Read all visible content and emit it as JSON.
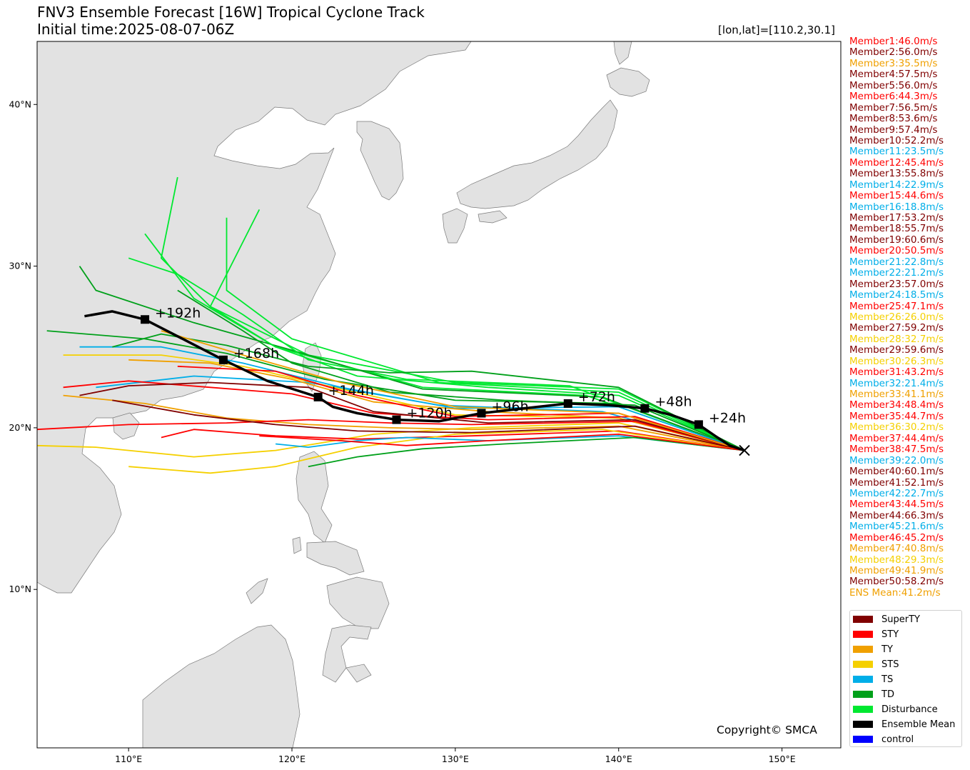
{
  "title_line1": "FNV3 Ensemble Forecast [16W] Tropical Cyclone Track",
  "title_line2": "Initial time:2025-08-07-06Z",
  "lonlat_readout": "[lon,lat]=[110.2,30.1]",
  "copyright": "Copyright© SMCA",
  "map_extent": {
    "lon": [
      104.4,
      153.6
    ],
    "lat": [
      0.2,
      43.9
    ]
  },
  "lon_ticks": [
    {
      "value": 110,
      "label": "110°E"
    },
    {
      "value": 120,
      "label": "120°E"
    },
    {
      "value": 130,
      "label": "130°E"
    },
    {
      "value": 140,
      "label": "140°E"
    },
    {
      "value": 150,
      "label": "150°E"
    }
  ],
  "lat_ticks": [
    {
      "value": 10,
      "label": "10°N"
    },
    {
      "value": 20,
      "label": "20°N"
    },
    {
      "value": 30,
      "label": "30°N"
    },
    {
      "value": 40,
      "label": "40°N"
    }
  ],
  "intensity_colors": {
    "SuperTY": "#800000",
    "STY": "#ff0000",
    "TY": "#f0a000",
    "STS": "#f5d000",
    "TS": "#00aee8",
    "TD": "#00a01a",
    "Disturbance": "#00e830",
    "EnsembleMean": "#000000",
    "control": "#0000ff"
  },
  "members": [
    {
      "label": "Member1:46.0m/s",
      "cat": "STY"
    },
    {
      "label": "Member2:56.0m/s",
      "cat": "SuperTY"
    },
    {
      "label": "Member3:35.5m/s",
      "cat": "TY"
    },
    {
      "label": "Member4:57.5m/s",
      "cat": "SuperTY"
    },
    {
      "label": "Member5:56.0m/s",
      "cat": "SuperTY"
    },
    {
      "label": "Member6:44.3m/s",
      "cat": "STY"
    },
    {
      "label": "Member7:56.5m/s",
      "cat": "SuperTY"
    },
    {
      "label": "Member8:53.6m/s",
      "cat": "SuperTY"
    },
    {
      "label": "Member9:57.4m/s",
      "cat": "SuperTY"
    },
    {
      "label": "Member10:52.2m/s",
      "cat": "SuperTY"
    },
    {
      "label": "Member11:23.5m/s",
      "cat": "TS"
    },
    {
      "label": "Member12:45.4m/s",
      "cat": "STY"
    },
    {
      "label": "Member13:55.8m/s",
      "cat": "SuperTY"
    },
    {
      "label": "Member14:22.9m/s",
      "cat": "TS"
    },
    {
      "label": "Member15:44.6m/s",
      "cat": "STY"
    },
    {
      "label": "Member16:18.8m/s",
      "cat": "TS"
    },
    {
      "label": "Member17:53.2m/s",
      "cat": "SuperTY"
    },
    {
      "label": "Member18:55.7m/s",
      "cat": "SuperTY"
    },
    {
      "label": "Member19:60.6m/s",
      "cat": "SuperTY"
    },
    {
      "label": "Member20:50.5m/s",
      "cat": "STY"
    },
    {
      "label": "Member21:22.8m/s",
      "cat": "TS"
    },
    {
      "label": "Member22:21.2m/s",
      "cat": "TS"
    },
    {
      "label": "Member23:57.0m/s",
      "cat": "SuperTY"
    },
    {
      "label": "Member24:18.5m/s",
      "cat": "TS"
    },
    {
      "label": "Member25:47.1m/s",
      "cat": "STY"
    },
    {
      "label": "Member26:26.0m/s",
      "cat": "STS"
    },
    {
      "label": "Member27:59.2m/s",
      "cat": "SuperTY"
    },
    {
      "label": "Member28:32.7m/s",
      "cat": "STS"
    },
    {
      "label": "Member29:59.6m/s",
      "cat": "SuperTY"
    },
    {
      "label": "Member30:26.3m/s",
      "cat": "STS"
    },
    {
      "label": "Member31:43.2m/s",
      "cat": "STY"
    },
    {
      "label": "Member32:21.4m/s",
      "cat": "TS"
    },
    {
      "label": "Member33:41.1m/s",
      "cat": "TY"
    },
    {
      "label": "Member34:48.4m/s",
      "cat": "STY"
    },
    {
      "label": "Member35:44.7m/s",
      "cat": "STY"
    },
    {
      "label": "Member36:30.2m/s",
      "cat": "STS"
    },
    {
      "label": "Member37:44.4m/s",
      "cat": "STY"
    },
    {
      "label": "Member38:47.5m/s",
      "cat": "STY"
    },
    {
      "label": "Member39:22.0m/s",
      "cat": "TS"
    },
    {
      "label": "Member40:60.1m/s",
      "cat": "SuperTY"
    },
    {
      "label": "Member41:52.1m/s",
      "cat": "SuperTY"
    },
    {
      "label": "Member42:22.7m/s",
      "cat": "TS"
    },
    {
      "label": "Member43:44.5m/s",
      "cat": "STY"
    },
    {
      "label": "Member44:66.3m/s",
      "cat": "SuperTY"
    },
    {
      "label": "Member45:21.6m/s",
      "cat": "TS"
    },
    {
      "label": "Member46:45.2m/s",
      "cat": "STY"
    },
    {
      "label": "Member47:40.8m/s",
      "cat": "TY"
    },
    {
      "label": "Member48:29.3m/s",
      "cat": "STS"
    },
    {
      "label": "Member49:41.9m/s",
      "cat": "TY"
    },
    {
      "label": "Member50:58.2m/s",
      "cat": "SuperTY"
    },
    {
      "label": "ENS Mean:41.2m/s",
      "cat": "TY"
    }
  ],
  "legend": [
    {
      "label": "SuperTY",
      "cat": "SuperTY"
    },
    {
      "label": "STY",
      "cat": "STY"
    },
    {
      "label": "TY",
      "cat": "TY"
    },
    {
      "label": "STS",
      "cat": "STS"
    },
    {
      "label": "TS",
      "cat": "TS"
    },
    {
      "label": "TD",
      "cat": "TD"
    },
    {
      "label": "Disturbance",
      "cat": "Disturbance"
    },
    {
      "label": "Ensemble Mean",
      "cat": "EnsembleMean"
    },
    {
      "label": "control",
      "cat": "control"
    }
  ],
  "initial_position": {
    "lon": 147.7,
    "lat": 18.6
  },
  "ensemble_mean_track": [
    [
      147.7,
      18.6
    ],
    [
      146.8,
      18.9
    ],
    [
      145.9,
      19.5
    ],
    [
      144.9,
      20.2
    ],
    [
      143.2,
      20.8
    ],
    [
      141.6,
      21.2
    ],
    [
      139.4,
      21.4
    ],
    [
      136.9,
      21.5
    ],
    [
      134.2,
      21.2
    ],
    [
      131.6,
      20.9
    ],
    [
      129.0,
      20.4
    ],
    [
      126.4,
      20.5
    ],
    [
      124.0,
      20.9
    ],
    [
      122.5,
      21.3
    ],
    [
      121.6,
      21.9
    ],
    [
      118.5,
      22.9
    ],
    [
      115.8,
      24.2
    ],
    [
      113.5,
      25.4
    ],
    [
      111.0,
      26.7
    ],
    [
      109.0,
      27.2
    ],
    [
      107.3,
      26.9
    ]
  ],
  "mean_markers": [
    {
      "lon": 144.9,
      "lat": 20.2,
      "label": "+24h"
    },
    {
      "lon": 141.6,
      "lat": 21.2,
      "label": "+48h"
    },
    {
      "lon": 136.9,
      "lat": 21.5,
      "label": "+72h"
    },
    {
      "lon": 131.6,
      "lat": 20.9,
      "label": "+96h"
    },
    {
      "lon": 126.4,
      "lat": 20.5,
      "label": "+120h"
    },
    {
      "lon": 121.6,
      "lat": 21.9,
      "label": "+144h"
    },
    {
      "lon": 115.8,
      "lat": 24.2,
      "label": "+168h"
    },
    {
      "lon": 111.0,
      "lat": 26.7,
      "label": "+192h"
    }
  ],
  "member_tracks": [
    {
      "cat": "Disturbance",
      "pts": [
        [
          147.7,
          18.6
        ],
        [
          140,
          22.4
        ],
        [
          130,
          22.8
        ],
        [
          121,
          24.5
        ],
        [
          115,
          27.5
        ],
        [
          112,
          30.5
        ],
        [
          113,
          35.5
        ]
      ]
    },
    {
      "cat": "Disturbance",
      "pts": [
        [
          147.7,
          18.6
        ],
        [
          138,
          22.0
        ],
        [
          128,
          22.5
        ],
        [
          119,
          25.0
        ],
        [
          114,
          28.0
        ],
        [
          111,
          32.0
        ]
      ]
    },
    {
      "cat": "Disturbance",
      "pts": [
        [
          147.7,
          18.6
        ],
        [
          140,
          22.2
        ],
        [
          129,
          22.8
        ],
        [
          120,
          25.5
        ],
        [
          116,
          28.5
        ],
        [
          116,
          33.0
        ]
      ]
    },
    {
      "cat": "TD",
      "pts": [
        [
          147.7,
          18.6
        ],
        [
          139,
          21.9
        ],
        [
          128,
          22.4
        ],
        [
          120,
          24.8
        ],
        [
          114,
          26.5
        ],
        [
          108,
          28.5
        ],
        [
          107,
          30.0
        ]
      ]
    },
    {
      "cat": "Disturbance",
      "pts": [
        [
          147.7,
          18.6
        ],
        [
          137,
          22.6
        ],
        [
          127,
          23.0
        ],
        [
          121,
          24.2
        ],
        [
          117,
          27.0
        ],
        [
          113,
          29.5
        ],
        [
          110,
          30.5
        ]
      ]
    },
    {
      "cat": "TD",
      "pts": [
        [
          147.7,
          18.6
        ],
        [
          140,
          21.5
        ],
        [
          130,
          21.7
        ],
        [
          122,
          23.0
        ],
        [
          116,
          24.6
        ],
        [
          111,
          25.5
        ],
        [
          105,
          26.0
        ]
      ]
    },
    {
      "cat": "Disturbance",
      "pts": [
        [
          147.7,
          18.6
        ],
        [
          140,
          22.0
        ],
        [
          132,
          22.5
        ],
        [
          124,
          23.2
        ],
        [
          119,
          25.0
        ],
        [
          115,
          27.5
        ],
        [
          118,
          33.5
        ]
      ]
    },
    {
      "cat": "TD",
      "pts": [
        [
          147.7,
          18.6
        ],
        [
          141,
          21.4
        ],
        [
          133,
          21.7
        ],
        [
          126,
          22.2
        ],
        [
          120,
          24.0
        ],
        [
          117,
          26.0
        ],
        [
          113,
          28.5
        ]
      ]
    },
    {
      "cat": "TS",
      "pts": [
        [
          147.7,
          18.6
        ],
        [
          140,
          21.3
        ],
        [
          130,
          21.2
        ],
        [
          123,
          22.5
        ],
        [
          117,
          24.0
        ],
        [
          112,
          25.0
        ],
        [
          107,
          25.0
        ]
      ]
    },
    {
      "cat": "TS",
      "pts": [
        [
          147.7,
          18.6
        ],
        [
          139,
          21.0
        ],
        [
          129,
          21.4
        ],
        [
          121,
          22.8
        ],
        [
          114,
          23.2
        ],
        [
          108,
          22.5
        ]
      ]
    },
    {
      "cat": "STS",
      "pts": [
        [
          147.7,
          18.6
        ],
        [
          140,
          20.6
        ],
        [
          130,
          20.8
        ],
        [
          123,
          22.4
        ],
        [
          117,
          23.8
        ],
        [
          112,
          24.5
        ],
        [
          106,
          24.5
        ]
      ]
    },
    {
      "cat": "STS",
      "pts": [
        [
          147.7,
          18.6
        ],
        [
          140,
          20.3
        ],
        [
          131,
          20.0
        ],
        [
          125,
          19.6
        ],
        [
          119,
          18.6
        ],
        [
          114,
          18.2
        ],
        [
          108,
          18.8
        ],
        [
          104.4,
          18.9
        ]
      ]
    },
    {
      "cat": "TY",
      "pts": [
        [
          147.7,
          18.6
        ],
        [
          140,
          20.1
        ],
        [
          131,
          19.9
        ],
        [
          126,
          20.0
        ],
        [
          121,
          20.2
        ],
        [
          116,
          20.6
        ],
        [
          111,
          21.5
        ],
        [
          106,
          22.0
        ]
      ]
    },
    {
      "cat": "TY",
      "pts": [
        [
          147.7,
          18.6
        ],
        [
          140,
          20.6
        ],
        [
          132,
          21.0
        ],
        [
          125,
          21.6
        ],
        [
          120,
          23.0
        ],
        [
          115,
          24.0
        ],
        [
          110,
          24.2
        ]
      ]
    },
    {
      "cat": "STY",
      "pts": [
        [
          147.7,
          18.6
        ],
        [
          141,
          20.4
        ],
        [
          131,
          20.2
        ],
        [
          126,
          20.3
        ],
        [
          121,
          20.5
        ],
        [
          116,
          20.3
        ],
        [
          110,
          20.2
        ],
        [
          104.4,
          19.9
        ]
      ]
    },
    {
      "cat": "STY",
      "pts": [
        [
          147.7,
          18.6
        ],
        [
          141,
          20.7
        ],
        [
          132,
          20.5
        ],
        [
          125,
          20.9
        ],
        [
          120,
          22.1
        ],
        [
          115,
          22.5
        ],
        [
          110,
          22.9
        ],
        [
          106,
          22.5
        ]
      ]
    },
    {
      "cat": "STY",
      "pts": [
        [
          147.7,
          18.6
        ],
        [
          140,
          20.9
        ],
        [
          130,
          20.7
        ],
        [
          124,
          22.0
        ],
        [
          119,
          23.5
        ],
        [
          113,
          23.8
        ]
      ]
    },
    {
      "cat": "SuperTY",
      "pts": [
        [
          147.7,
          18.6
        ],
        [
          141,
          20.5
        ],
        [
          132,
          20.3
        ],
        [
          125,
          21.0
        ],
        [
          121,
          22.5
        ],
        [
          115,
          22.8
        ],
        [
          110,
          22.6
        ],
        [
          107,
          22.0
        ]
      ]
    },
    {
      "cat": "SuperTY",
      "pts": [
        [
          147.7,
          18.6
        ],
        [
          141,
          20.1
        ],
        [
          131,
          19.7
        ],
        [
          124,
          19.8
        ],
        [
          119,
          20.2
        ],
        [
          114,
          20.8
        ],
        [
          109,
          21.7
        ]
      ]
    },
    {
      "cat": "STY",
      "pts": [
        [
          147.7,
          18.6
        ],
        [
          140,
          19.8
        ],
        [
          131,
          19.5
        ],
        [
          124,
          19.3
        ],
        [
          119,
          19.5
        ],
        [
          114,
          19.9
        ],
        [
          112,
          19.4
        ]
      ]
    },
    {
      "cat": "STS",
      "pts": [
        [
          147.7,
          18.6
        ],
        [
          139,
          19.9
        ],
        [
          130,
          19.6
        ],
        [
          124,
          18.8
        ],
        [
          119,
          17.6
        ],
        [
          115,
          17.2
        ],
        [
          110,
          17.6
        ]
      ]
    },
    {
      "cat": "TS",
      "pts": [
        [
          147.7,
          18.6
        ],
        [
          140,
          19.5
        ],
        [
          132,
          19.2
        ],
        [
          127,
          19.4
        ],
        [
          124,
          19.2
        ],
        [
          121,
          18.8
        ],
        [
          119,
          19.0
        ]
      ]
    },
    {
      "cat": "TD",
      "pts": [
        [
          147.7,
          18.6
        ],
        [
          140,
          22.5
        ],
        [
          131,
          23.5
        ],
        [
          126,
          23.4
        ],
        [
          121,
          23.8
        ],
        [
          116,
          25.1
        ],
        [
          112,
          25.8
        ],
        [
          109,
          25.0
        ]
      ]
    },
    {
      "cat": "TD",
      "pts": [
        [
          147.7,
          18.6
        ],
        [
          141,
          19.4
        ],
        [
          133,
          19.0
        ],
        [
          128,
          18.7
        ],
        [
          124,
          18.2
        ],
        [
          121,
          17.6
        ]
      ]
    },
    {
      "cat": "TY",
      "pts": [
        [
          147.7,
          18.6
        ],
        [
          140,
          20.9
        ],
        [
          130,
          21.3
        ],
        [
          123,
          22.8
        ],
        [
          117,
          24.5
        ],
        [
          112,
          26.0
        ]
      ]
    },
    {
      "cat": "STY",
      "pts": [
        [
          147.7,
          18.6
        ],
        [
          140,
          19.6
        ],
        [
          132,
          19.2
        ],
        [
          127,
          18.9
        ],
        [
          123,
          19.2
        ],
        [
          118,
          19.5
        ]
      ]
    }
  ]
}
